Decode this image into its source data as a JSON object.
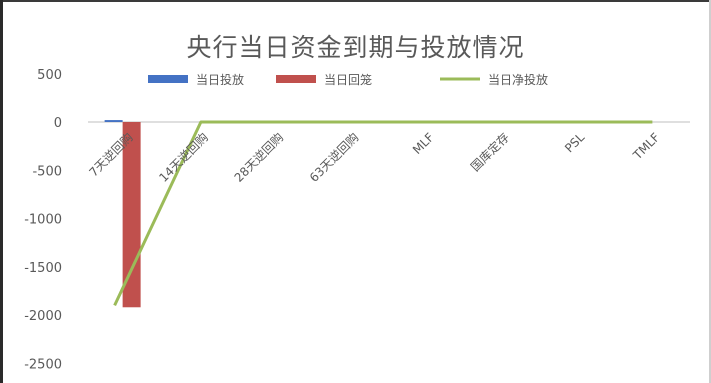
{
  "chart_data": {
    "type": "bar",
    "title": "央行当日资金到期与投放情况",
    "categories": [
      "7天逆回购",
      "14天逆回购",
      "28天逆回购",
      "63天逆回购",
      "MLF",
      "国库定存",
      "PSL",
      "TMLF"
    ],
    "series": [
      {
        "name": "当日投放",
        "type": "bar",
        "color": "#4472c4",
        "values": [
          20,
          0,
          0,
          0,
          0,
          0,
          0,
          0
        ]
      },
      {
        "name": "当日回笼",
        "type": "bar",
        "color": "#c0504d",
        "values": [
          -1920,
          0,
          0,
          0,
          0,
          0,
          0,
          0
        ]
      },
      {
        "name": "当日净投放",
        "type": "line",
        "color": "#9bbb59",
        "values": [
          -1900,
          0,
          0,
          0,
          0,
          0,
          0,
          0
        ]
      }
    ],
    "yticks": [
      500,
      0,
      -500,
      -1000,
      -1500,
      -2000,
      -2500
    ],
    "ylim": [
      -2500,
      500
    ],
    "legend_position": "top",
    "grid": false
  }
}
